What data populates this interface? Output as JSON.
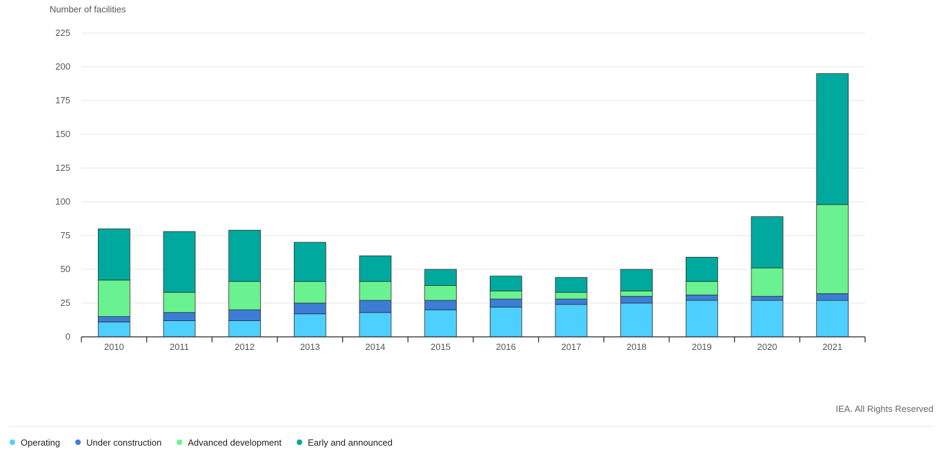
{
  "chart_data": {
    "type": "bar",
    "stacked": true,
    "title": "",
    "ylabel": "Number of facilities",
    "xlabel": "",
    "ylim": [
      0,
      225
    ],
    "yticks": [
      0,
      25,
      50,
      75,
      100,
      125,
      150,
      175,
      200,
      225
    ],
    "grid": true,
    "legend_position": "bottom-left",
    "categories": [
      "2010",
      "2011",
      "2012",
      "2013",
      "2014",
      "2015",
      "2016",
      "2017",
      "2018",
      "2019",
      "2020",
      "2021"
    ],
    "series": [
      {
        "name": "Operating",
        "color": "#4dd0ff",
        "values": [
          11,
          12,
          12,
          17,
          18,
          20,
          22,
          24,
          25,
          27,
          27,
          27
        ]
      },
      {
        "name": "Under construction",
        "color": "#3d7dd6",
        "values": [
          4,
          6,
          8,
          8,
          9,
          7,
          6,
          4,
          5,
          4,
          3,
          5
        ]
      },
      {
        "name": "Advanced development",
        "color": "#69f28f",
        "values": [
          27,
          15,
          21,
          16,
          14,
          11,
          6,
          5,
          4,
          10,
          21,
          66
        ]
      },
      {
        "name": "Early and announced",
        "color": "#00a99d",
        "values": [
          38,
          45,
          38,
          29,
          19,
          12,
          11,
          11,
          16,
          18,
          38,
          97
        ]
      }
    ]
  },
  "credit": "IEA. All Rights Reserved"
}
